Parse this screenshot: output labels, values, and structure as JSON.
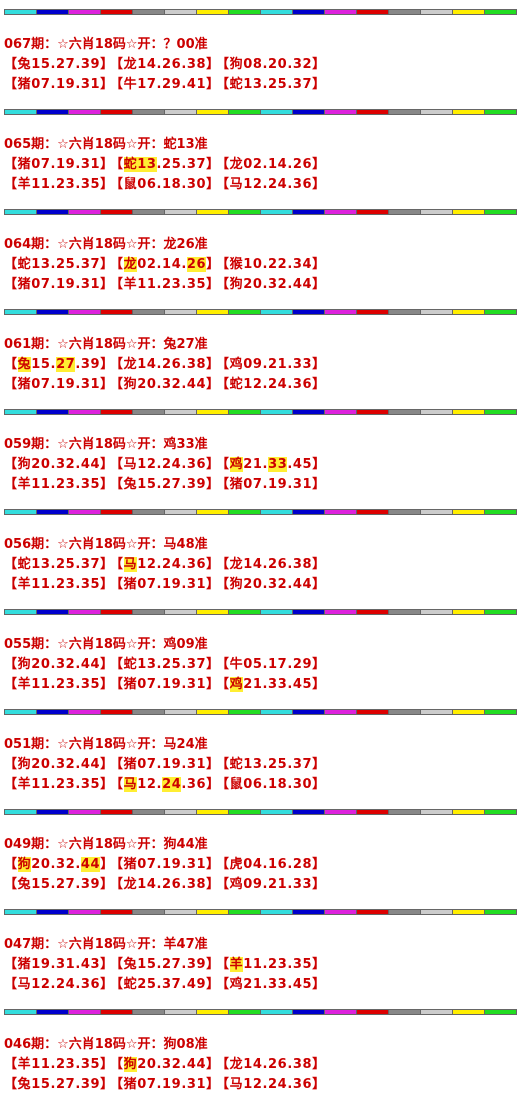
{
  "entries": [
    {
      "title": "067期：☆六肖18码☆开：？00准",
      "rows": [
        [
          [
            "【兔15.27.39】"
          ],
          [
            "【龙14.26.38】"
          ],
          [
            "【狗08.20.32】"
          ]
        ],
        [
          [
            "【猪07.19.31】"
          ],
          [
            "【牛17.29.41】"
          ],
          [
            "【蛇13.25.37】"
          ]
        ]
      ]
    },
    {
      "title": "065期：☆六肖18码☆开：蛇13准",
      "rows": [
        [
          [
            "【猪07.19.31】"
          ],
          [
            "【",
            "蛇13",
            ".25.37】"
          ],
          [
            "【龙02.14.26】"
          ]
        ],
        [
          [
            "【羊11.23.35】"
          ],
          [
            "【鼠06.18.30】"
          ],
          [
            "【马12.24.36】"
          ]
        ]
      ]
    },
    {
      "title": "064期：☆六肖18码☆开：龙26准",
      "rows": [
        [
          [
            "【蛇13.25.37】"
          ],
          [
            "【",
            "龙",
            "02.14.",
            "26",
            "】"
          ],
          [
            "【猴10.22.34】"
          ]
        ],
        [
          [
            "【猪07.19.31】"
          ],
          [
            "【羊11.23.35】"
          ],
          [
            "【狗20.32.44】"
          ]
        ]
      ]
    },
    {
      "title": "061期：☆六肖18码☆开：兔27准",
      "rows": [
        [
          [
            "【",
            "兔",
            "15.",
            "27",
            ".39】"
          ],
          [
            "【龙14.26.38】"
          ],
          [
            "【鸡09.21.33】"
          ]
        ],
        [
          [
            "【猪07.19.31】"
          ],
          [
            "【狗20.32.44】"
          ],
          [
            "【蛇12.24.36】"
          ]
        ]
      ]
    },
    {
      "title": "059期：☆六肖18码☆开：鸡33准",
      "rows": [
        [
          [
            "【狗20.32.44】"
          ],
          [
            "【马12.24.36】"
          ],
          [
            "【",
            "鸡",
            "21.",
            "33",
            ".45】"
          ]
        ],
        [
          [
            "【羊11.23.35】"
          ],
          [
            "【兔15.27.39】"
          ],
          [
            "【猪07.19.31】"
          ]
        ]
      ]
    },
    {
      "title": "056期：☆六肖18码☆开：马48准",
      "rows": [
        [
          [
            "【蛇13.25.37】"
          ],
          [
            "【",
            "马",
            "12.24.36】"
          ],
          [
            "【龙14.26.38】"
          ]
        ],
        [
          [
            "【羊11.23.35】"
          ],
          [
            "【猪07.19.31】"
          ],
          [
            "【狗20.32.44】"
          ]
        ]
      ]
    },
    {
      "title": "055期：☆六肖18码☆开：鸡09准",
      "rows": [
        [
          [
            "【狗20.32.44】"
          ],
          [
            "【蛇13.25.37】"
          ],
          [
            "【牛05.17.29】"
          ]
        ],
        [
          [
            "【羊11.23.35】"
          ],
          [
            "【猪07.19.31】"
          ],
          [
            "【",
            "鸡",
            "21.33.45】"
          ]
        ]
      ]
    },
    {
      "title": "051期：☆六肖18码☆开：马24准",
      "rows": [
        [
          [
            "【狗20.32.44】"
          ],
          [
            "【猪07.19.31】"
          ],
          [
            "【蛇13.25.37】"
          ]
        ],
        [
          [
            "【羊11.23.35】"
          ],
          [
            "【",
            "马",
            "12.",
            "24",
            ".36】"
          ],
          [
            "【鼠06.18.30】"
          ]
        ]
      ]
    },
    {
      "title": "049期：☆六肖18码☆开：狗44准",
      "rows": [
        [
          [
            "【",
            "狗",
            "20.32.",
            "44",
            "】"
          ],
          [
            "【猪07.19.31】"
          ],
          [
            "【虎04.16.28】"
          ]
        ],
        [
          [
            "【兔15.27.39】"
          ],
          [
            "【龙14.26.38】"
          ],
          [
            "【鸡09.21.33】"
          ]
        ]
      ]
    },
    {
      "title": "047期：☆六肖18码☆开：羊47准",
      "rows": [
        [
          [
            "【猪19.31.43】"
          ],
          [
            "【兔15.27.39】"
          ],
          [
            "【",
            "羊",
            "11.23.35】"
          ]
        ],
        [
          [
            "【马12.24.36】"
          ],
          [
            "【蛇25.37.49】"
          ],
          [
            "【鸡21.33.45】"
          ]
        ]
      ]
    },
    {
      "title": "046期：☆六肖18码☆开：狗08准",
      "rows": [
        [
          [
            "【羊11.23.35】"
          ],
          [
            "【",
            "狗",
            "20.32.44】"
          ],
          [
            "【龙14.26.38】"
          ]
        ],
        [
          [
            "【兔15.27.39】"
          ],
          [
            "【猪07.19.31】"
          ],
          [
            "【马12.24.36】"
          ]
        ]
      ]
    }
  ]
}
